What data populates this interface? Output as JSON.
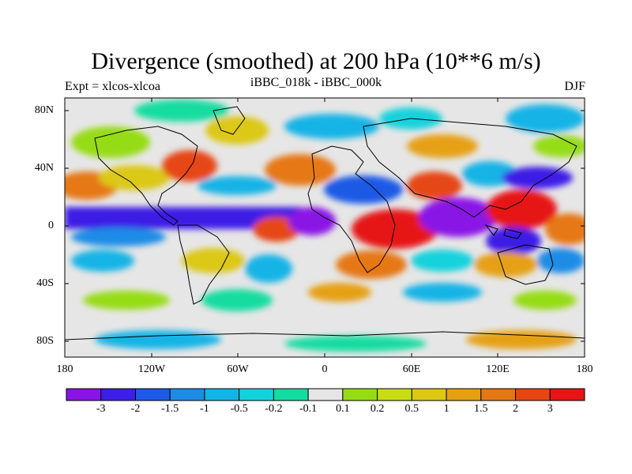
{
  "title": "Divergence (smoothed) at 200 hPa (10**6 m/s)",
  "subtitle_left": "Expt = xlcos-xlcoa",
  "subtitle_center": "iBBC_018k - iBBC_000k",
  "subtitle_right": "DJF",
  "lat_labels": [
    "80N",
    "40N",
    "0",
    "40S",
    "80S"
  ],
  "lon_labels": [
    "180",
    "120W",
    "60W",
    "0",
    "60E",
    "120E",
    "180"
  ],
  "colorbar": {
    "colors": [
      "#8a14e6",
      "#3c1ee6",
      "#1e5ae6",
      "#1e8ce6",
      "#14b4e6",
      "#14d2dc",
      "#14dca0",
      "#e6e6e6",
      "#96dc14",
      "#c8dc14",
      "#dcc814",
      "#e6a014",
      "#e67814",
      "#e64614",
      "#e61414"
    ],
    "labels": [
      "-3",
      "-2",
      "-1.5",
      "-1",
      "-0.5",
      "-0.2",
      "-0.1",
      "0.1",
      "0.2",
      "0.5",
      "1",
      "1.5",
      "2",
      "3"
    ]
  }
}
